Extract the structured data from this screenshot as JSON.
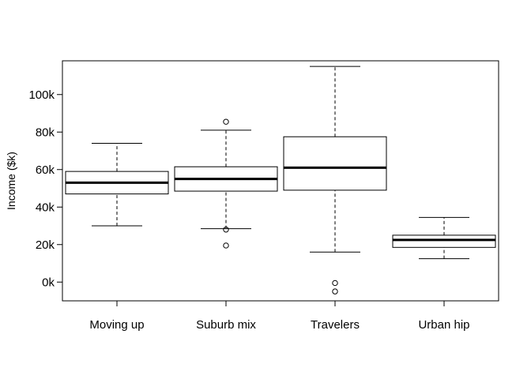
{
  "chart_data": {
    "type": "boxplot",
    "title": "",
    "xlabel": "",
    "ylabel": "Income ($k)",
    "ylim": [
      -10000,
      118000
    ],
    "yticks": [
      0,
      20000,
      40000,
      60000,
      80000,
      100000
    ],
    "ytick_labels": [
      "0k",
      "20k",
      "40k",
      "60k",
      "80k",
      "100k"
    ],
    "categories": [
      "Moving up",
      "Suburb mix",
      "Travelers",
      "Urban hip"
    ],
    "boxes": [
      {
        "category": "Moving up",
        "whisker_low": 30000,
        "q1": 47000,
        "median": 53000,
        "q3": 59000,
        "whisker_high": 74000,
        "outliers": []
      },
      {
        "category": "Suburb mix",
        "whisker_low": 28500,
        "q1": 48500,
        "median": 55000,
        "q3": 61500,
        "whisker_high": 81000,
        "outliers": [
          85500,
          28000,
          19500
        ]
      },
      {
        "category": "Travelers",
        "whisker_low": 16000,
        "q1": 49000,
        "median": 61000,
        "q3": 77500,
        "whisker_high": 115000,
        "outliers": [
          -500,
          -5000
        ]
      },
      {
        "category": "Urban hip",
        "whisker_low": 12500,
        "q1": 18500,
        "median": 22500,
        "q3": 25000,
        "whisker_high": 34500,
        "outliers": []
      }
    ],
    "grid": false,
    "legend": "none",
    "colors": {
      "box_fill": "#ffffff",
      "stroke": "#000000"
    }
  }
}
